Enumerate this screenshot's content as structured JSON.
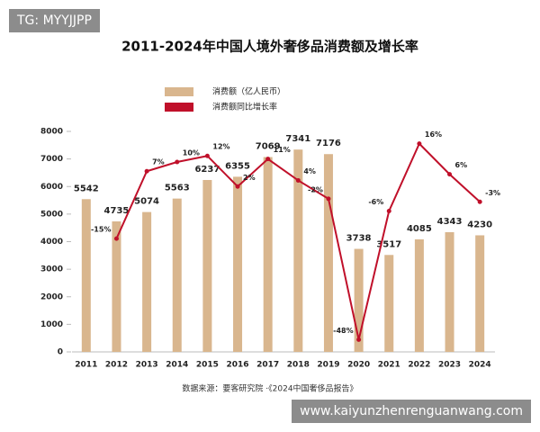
{
  "chart_data": {
    "type": "bar-line",
    "title": "2011-2024年中国人境外奢侈品消费额及增长率",
    "source": "数据来源：要客研究院 ·《2024中国奢侈品报告》",
    "categories": [
      "2011",
      "2012",
      "2013",
      "2014",
      "2015",
      "2016",
      "2017",
      "2018",
      "2019",
      "2020",
      "2021",
      "2022",
      "2023",
      "2024"
    ],
    "series": [
      {
        "name": "消费额（亿人民币）",
        "color": "#d9b68e",
        "values": [
          5542,
          4735,
          5074,
          5563,
          6237,
          6355,
          7069,
          7341,
          7176,
          3738,
          3517,
          4085,
          4343,
          4230
        ]
      },
      {
        "name": "消费额同比增长率",
        "color": "#c0102a",
        "axis": "y2",
        "values": [
          null,
          -15,
          7,
          10,
          12,
          2,
          11,
          4,
          -2,
          -48,
          -6,
          16,
          6,
          -3
        ],
        "value_labels": [
          null,
          "-15%",
          "7%",
          "10%",
          "12%",
          "2%",
          "11%",
          "4%",
          "-2%",
          "-48%",
          "-6%",
          "16%",
          "6%",
          "-3%"
        ]
      }
    ],
    "ylim": [
      0,
      8000
    ],
    "yticks": [
      0,
      1000,
      2000,
      3000,
      4000,
      5000,
      6000,
      7000,
      8000
    ],
    "y2lim": [
      -52,
      20
    ],
    "grid": false
  },
  "watermarks": {
    "top_left": "TG: MYYJJPP",
    "bottom_right": "www.kaiyunzhenrenguanwang.com"
  }
}
